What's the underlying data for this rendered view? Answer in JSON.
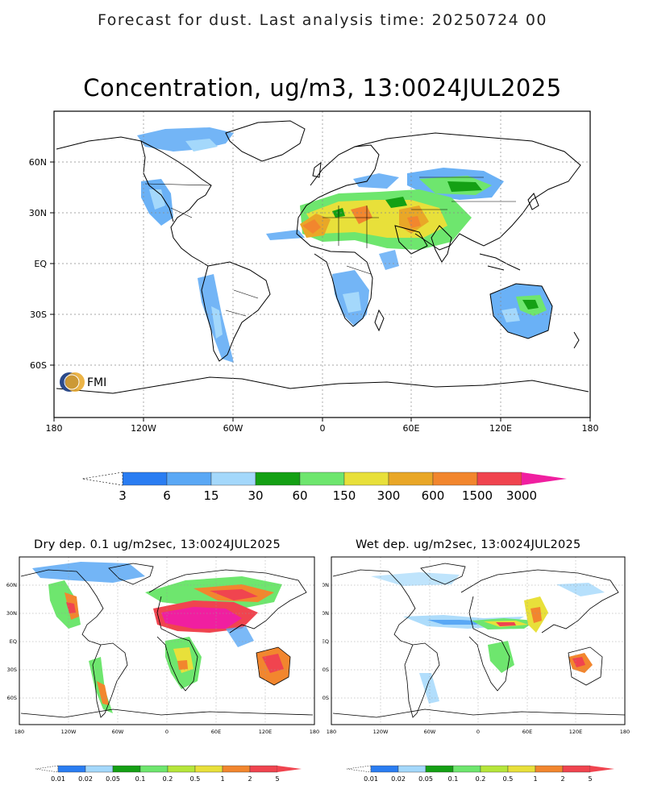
{
  "header": "Forecast for dust. Last analysis time: 20250724 00",
  "main_map": {
    "title": "Concentration, ug/m3, 13:0024JUL2025",
    "x_ticks": [
      "180",
      "120W",
      "60W",
      "0",
      "60E",
      "120E",
      "180"
    ],
    "y_ticks": [
      "60N",
      "30N",
      "EQ",
      "30S",
      "60S"
    ],
    "logo_text": "FMI"
  },
  "main_colorbar": {
    "labels": [
      "3",
      "6",
      "15",
      "30",
      "60",
      "150",
      "300",
      "600",
      "1500",
      "3000"
    ],
    "colors": [
      "#2a7df2",
      "#5aa8f5",
      "#a4d8fb",
      "#14a014",
      "#6ee66e",
      "#e8e03a",
      "#e9a727",
      "#f2862e",
      "#f0444f",
      "#f01fa0"
    ]
  },
  "dry_map": {
    "title": "Dry dep. 0.1 ug/m2sec, 13:0024JUL2025",
    "x_ticks": [
      "180",
      "120W",
      "60W",
      "0",
      "60E",
      "120E",
      "180"
    ],
    "y_ticks": [
      "60N",
      "30N",
      "EQ",
      "30S",
      "60S"
    ]
  },
  "wet_map": {
    "title": "Wet dep. ug/m2sec, 13:0024JUL2025",
    "x_ticks": [
      "180",
      "120W",
      "60W",
      "0",
      "60E",
      "120E",
      "180"
    ],
    "y_ticks": [
      "60N",
      "30N",
      "EQ",
      "30S",
      "60S"
    ]
  },
  "small_colorbar": {
    "labels": [
      "0.01",
      "0.02",
      "0.05",
      "0.1",
      "0.2",
      "0.5",
      "1",
      "2",
      "5"
    ],
    "colors": [
      "#2a7df2",
      "#a4d8fb",
      "#14a014",
      "#6ee66e",
      "#b6e63a",
      "#e8e03a",
      "#f2862e",
      "#f0444f",
      "#f01fa0"
    ]
  }
}
